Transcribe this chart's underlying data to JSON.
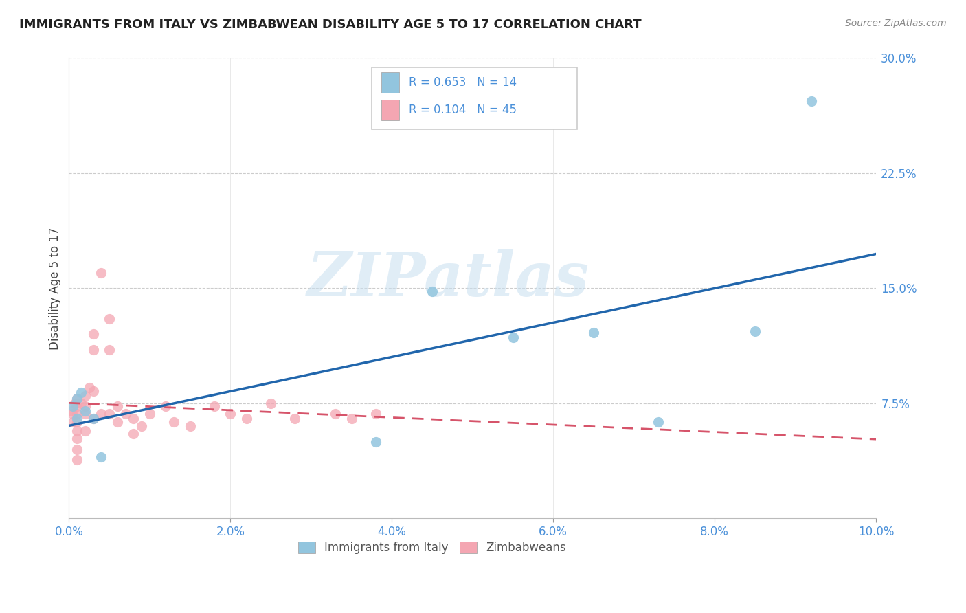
{
  "title": "IMMIGRANTS FROM ITALY VS ZIMBABWEAN DISABILITY AGE 5 TO 17 CORRELATION CHART",
  "source": "Source: ZipAtlas.com",
  "ylabel": "Disability Age 5 to 17",
  "xlim": [
    0.0,
    0.1
  ],
  "ylim": [
    0.0,
    0.3
  ],
  "xticks": [
    0.0,
    0.02,
    0.04,
    0.06,
    0.08,
    0.1
  ],
  "xtick_labels": [
    "0.0%",
    "2.0%",
    "4.0%",
    "6.0%",
    "8.0%",
    "10.0%"
  ],
  "yticks": [
    0.075,
    0.15,
    0.225,
    0.3
  ],
  "ytick_labels": [
    "7.5%",
    "15.0%",
    "22.5%",
    "30.0%"
  ],
  "blue_R": 0.653,
  "blue_N": 14,
  "pink_R": 0.104,
  "pink_N": 45,
  "blue_color": "#92c5de",
  "pink_color": "#f4a6b2",
  "blue_line_color": "#2166ac",
  "pink_line_color": "#d6546a",
  "legend_label_blue": "Immigrants from Italy",
  "legend_label_pink": "Zimbabweans",
  "watermark_text": "ZIPatlas",
  "blue_points_x": [
    0.0005,
    0.001,
    0.001,
    0.0015,
    0.002,
    0.003,
    0.004,
    0.045,
    0.055,
    0.065,
    0.073,
    0.085,
    0.092,
    0.038
  ],
  "blue_points_y": [
    0.073,
    0.078,
    0.065,
    0.082,
    0.07,
    0.065,
    0.04,
    0.148,
    0.118,
    0.121,
    0.063,
    0.122,
    0.272,
    0.05
  ],
  "pink_points_x": [
    0.0003,
    0.0005,
    0.0005,
    0.0007,
    0.001,
    0.001,
    0.001,
    0.001,
    0.001,
    0.001,
    0.001,
    0.001,
    0.0015,
    0.002,
    0.002,
    0.002,
    0.002,
    0.0025,
    0.003,
    0.003,
    0.003,
    0.003,
    0.004,
    0.004,
    0.005,
    0.005,
    0.005,
    0.006,
    0.006,
    0.007,
    0.008,
    0.008,
    0.009,
    0.01,
    0.012,
    0.013,
    0.015,
    0.018,
    0.02,
    0.022,
    0.025,
    0.028,
    0.033,
    0.035,
    0.038
  ],
  "pink_points_y": [
    0.07,
    0.068,
    0.063,
    0.075,
    0.078,
    0.073,
    0.068,
    0.063,
    0.057,
    0.052,
    0.045,
    0.038,
    0.075,
    0.08,
    0.073,
    0.068,
    0.057,
    0.085,
    0.12,
    0.11,
    0.083,
    0.065,
    0.16,
    0.068,
    0.13,
    0.11,
    0.068,
    0.073,
    0.063,
    0.068,
    0.065,
    0.055,
    0.06,
    0.068,
    0.073,
    0.063,
    0.06,
    0.073,
    0.068,
    0.065,
    0.075,
    0.065,
    0.068,
    0.065,
    0.068
  ]
}
